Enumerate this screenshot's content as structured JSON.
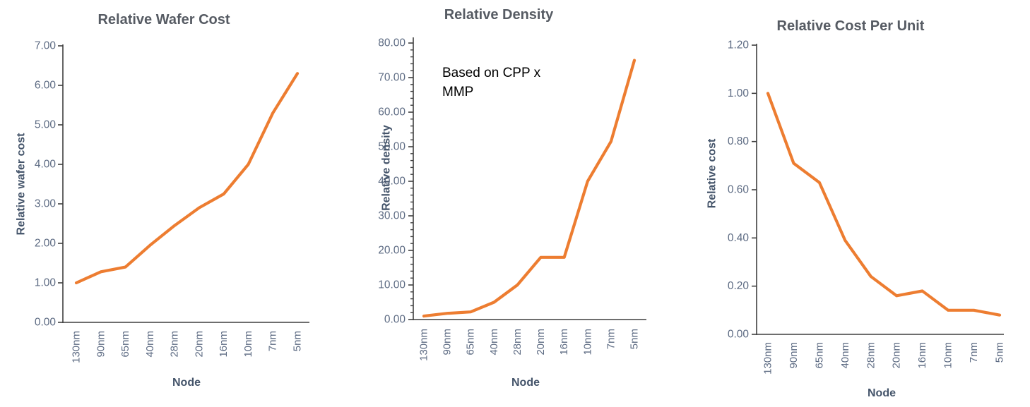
{
  "page": {
    "background": "#ffffff"
  },
  "colors": {
    "series_line": "#ED7D31",
    "chart_title": "#565b63",
    "axis_title": "#44546A",
    "tick_label": "#5d6b83",
    "axis_line": "#3f3f3f",
    "annotation": "#000000"
  },
  "chart_data": [
    {
      "type": "line",
      "title": "Relative Wafer Cost",
      "xlabel": "Node",
      "ylabel": "Relative wafer cost",
      "categories": [
        "130nm",
        "90nm",
        "65nm",
        "40nm",
        "28nm",
        "20nm",
        "16nm",
        "10nm",
        "7nm",
        "5nm"
      ],
      "values": [
        1.0,
        1.28,
        1.4,
        1.95,
        2.45,
        2.9,
        3.25,
        4.0,
        5.3,
        6.3
      ],
      "ylim": [
        0,
        7
      ],
      "ytick_step": 1,
      "yticks": [
        "0.00",
        "1.00",
        "2.00",
        "3.00",
        "4.00",
        "5.00",
        "6.00",
        "7.00"
      ],
      "minor_tick_step": null,
      "grid": false,
      "legend": "none",
      "annotation": null
    },
    {
      "type": "line",
      "title": "Relative Density",
      "xlabel": "Node",
      "ylabel": "Relative density",
      "categories": [
        "130nm",
        "90nm",
        "65nm",
        "40nm",
        "28nm",
        "20nm",
        "16nm",
        "10nm",
        "7nm",
        "5nm"
      ],
      "values": [
        1.0,
        1.8,
        2.2,
        5.0,
        10.0,
        18.0,
        18.0,
        40.0,
        51.5,
        75.0
      ],
      "ylim": [
        0,
        80
      ],
      "ytick_step": 10,
      "yticks": [
        "0.00",
        "10.00",
        "20.00",
        "30.00",
        "40.00",
        "50.00",
        "60.00",
        "70.00",
        "80.00"
      ],
      "minor_tick_step": 2,
      "grid": false,
      "legend": "none",
      "annotation": [
        "Based on CPP x",
        "MMP"
      ]
    },
    {
      "type": "line",
      "title": "Relative Cost Per Unit",
      "xlabel": "Node",
      "ylabel": "Relative cost",
      "categories": [
        "130nm",
        "90nm",
        "65nm",
        "40nm",
        "28nm",
        "20nm",
        "16nm",
        "10nm",
        "7nm",
        "5nm"
      ],
      "values": [
        1.0,
        0.71,
        0.63,
        0.39,
        0.24,
        0.16,
        0.18,
        0.1,
        0.1,
        0.08
      ],
      "ylim": [
        0,
        1.2
      ],
      "ytick_step": 0.2,
      "yticks": [
        "0.00",
        "0.20",
        "0.40",
        "0.60",
        "0.80",
        "1.00",
        "1.20"
      ],
      "minor_tick_step": null,
      "grid": false,
      "legend": "none",
      "annotation": null
    }
  ]
}
